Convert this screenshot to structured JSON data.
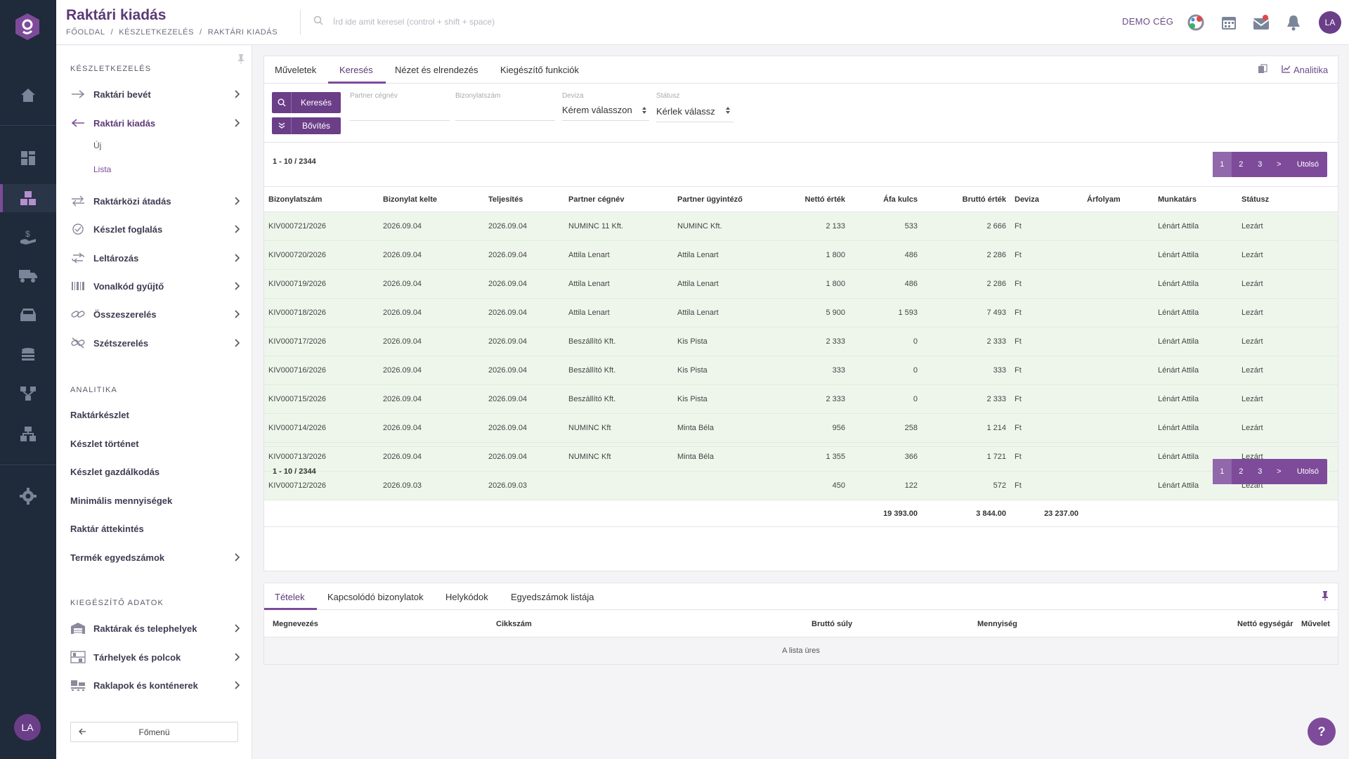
{
  "header": {
    "title": "Raktári kiadás",
    "breadcrumb": [
      "FŐOLDAL",
      "/",
      "KÉSZLETKEZELÉS",
      "/",
      "RAKTÁRI KIADÁS"
    ],
    "search_placeholder": "Írd ide amit keresel (control + shift + space)",
    "company": "DEMO CÉG",
    "avatar": "LA"
  },
  "rail": {
    "avatar": "LA"
  },
  "sidebar": {
    "section1": "KÉSZLETKEZELÉS",
    "items": [
      {
        "label": "Raktári bevét"
      },
      {
        "label": "Raktári kiadás"
      },
      {
        "label": "Raktárközi átadás"
      },
      {
        "label": "Készlet foglalás"
      },
      {
        "label": "Leltározás"
      },
      {
        "label": "Vonalkód gyűjtő"
      },
      {
        "label": "Összeszerelés"
      },
      {
        "label": "Szétszerelés"
      }
    ],
    "subitems": [
      "Új",
      "Lista"
    ],
    "section2": "ANALITIKA",
    "analytics": [
      "Raktárkészlet",
      "Készlet történet",
      "Készlet gazdálkodás",
      "Minimális mennyiségek",
      "Raktár áttekintés",
      "Termék egyedszámok"
    ],
    "section3": "KIEGÉSZÍTŐ ADATOK",
    "extra": [
      "Raktárak és telephelyek",
      "Tárhelyek és polcok",
      "Raklapok és konténerek"
    ],
    "home_button": "Főmenü"
  },
  "tabs": [
    "Műveletek",
    "Keresés",
    "Nézet és elrendezés",
    "Kiegészítő funkciók"
  ],
  "analytics_link": "Analitika",
  "filters": {
    "search_button": "Keresés",
    "expand_button": "Bővítés",
    "partner_label": "Partner cégnév",
    "doc_label": "Bizonylatszám",
    "currency_label": "Deviza",
    "currency_value": "Kérem válasszon",
    "status_label": "Státusz",
    "status_value": "Kérlek válassz"
  },
  "pagination": {
    "count": "1 - 10 / 2344",
    "pages": [
      "1",
      "2",
      "3",
      ">"
    ],
    "last": "Utolsó"
  },
  "table": {
    "columns": [
      "Bizonylatszám",
      "Bizonylat kelte",
      "Teljesítés",
      "Partner cégnév",
      "Partner ügyintéző",
      "Nettó érték",
      "Áfa kulcs",
      "Bruttó érték",
      "Deviza",
      "Árfolyam",
      "Munkatárs",
      "Státusz"
    ],
    "rows": [
      [
        "KIV000721/2026",
        "2026.09.04",
        "2026.09.04",
        "NUMINC 11 Kft.",
        "NUMINC Kft.",
        "2 133",
        "533",
        "2 666",
        "Ft",
        "",
        "Lénárt Attila",
        "Lezárt"
      ],
      [
        "KIV000720/2026",
        "2026.09.04",
        "2026.09.04",
        "Attila Lenart",
        "Attila Lenart",
        "1 800",
        "486",
        "2 286",
        "Ft",
        "",
        "Lénárt Attila",
        "Lezárt"
      ],
      [
        "KIV000719/2026",
        "2026.09.04",
        "2026.09.04",
        "Attila Lenart",
        "Attila Lenart",
        "1 800",
        "486",
        "2 286",
        "Ft",
        "",
        "Lénárt Attila",
        "Lezárt"
      ],
      [
        "KIV000718/2026",
        "2026.09.04",
        "2026.09.04",
        "Attila Lenart",
        "Attila Lenart",
        "5 900",
        "1 593",
        "7 493",
        "Ft",
        "",
        "Lénárt Attila",
        "Lezárt"
      ],
      [
        "KIV000717/2026",
        "2026.09.04",
        "2026.09.04",
        "Beszállító Kft.",
        "Kis Pista",
        "2 333",
        "0",
        "2 333",
        "Ft",
        "",
        "Lénárt Attila",
        "Lezárt"
      ],
      [
        "KIV000716/2026",
        "2026.09.04",
        "2026.09.04",
        "Beszállító Kft.",
        "Kis Pista",
        "333",
        "0",
        "333",
        "Ft",
        "",
        "Lénárt Attila",
        "Lezárt"
      ],
      [
        "KIV000715/2026",
        "2026.09.04",
        "2026.09.04",
        "Beszállító Kft.",
        "Kis Pista",
        "2 333",
        "0",
        "2 333",
        "Ft",
        "",
        "Lénárt Attila",
        "Lezárt"
      ],
      [
        "KIV000714/2026",
        "2026.09.04",
        "2026.09.04",
        "NUMINC Kft",
        "Minta Béla",
        "956",
        "258",
        "1 214",
        "Ft",
        "",
        "Lénárt Attila",
        "Lezárt"
      ],
      [
        "KIV000713/2026",
        "2026.09.04",
        "2026.09.04",
        "NUMINC Kft",
        "Minta Béla",
        "1 355",
        "366",
        "1 721",
        "Ft",
        "",
        "Lénárt Attila",
        "Lezárt"
      ],
      [
        "KIV000712/2026",
        "2026.09.03",
        "2026.09.03",
        "",
        "",
        "450",
        "122",
        "572",
        "Ft",
        "",
        "Lénárt Attila",
        "Lezárt"
      ]
    ],
    "totals": {
      "net": "19 393.00",
      "vat": "3 844.00",
      "gross": "23 237.00"
    }
  },
  "bottom": {
    "tabs": [
      "Tételek",
      "Kapcsolódó bizonylatok",
      "Helykódok",
      "Egyedszámok listája"
    ],
    "columns": [
      "Megnevezés",
      "Cikkszám",
      "Bruttó súly",
      "Mennyiség",
      "Nettó egységár",
      "Művelet"
    ],
    "empty": "A lista üres"
  },
  "help": "?",
  "colors": {
    "accent": "#7d4b9a",
    "rail": "#1f2a3a",
    "row": "#eef6ec"
  }
}
